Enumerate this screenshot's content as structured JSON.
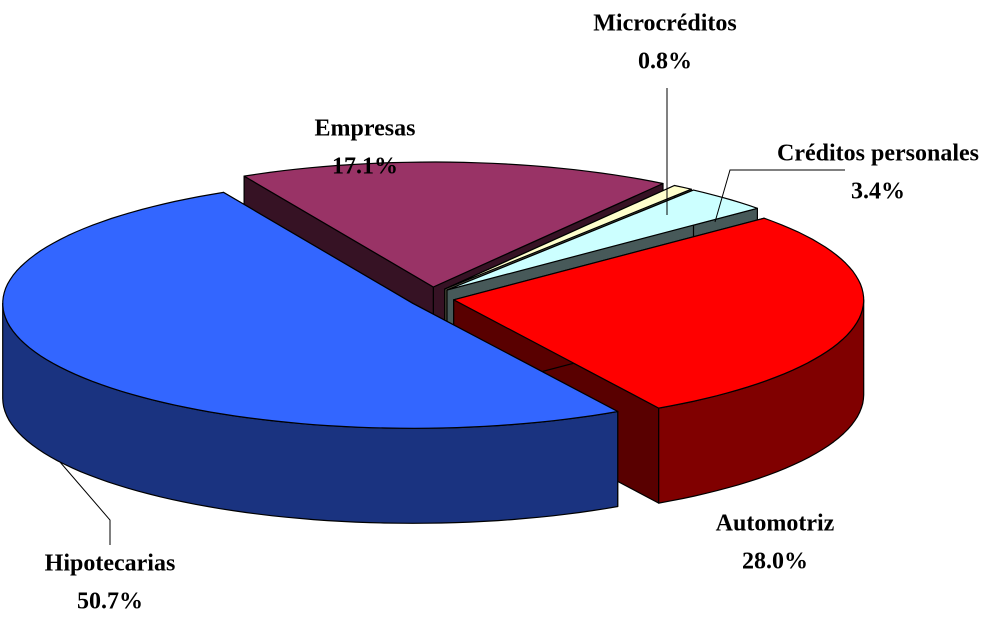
{
  "chart_data": {
    "type": "pie",
    "categories": [
      "Automotriz",
      "Créditos personales",
      "Microcréditos",
      "Empresas",
      "Hipotecarias"
    ],
    "values": [
      28.0,
      3.4,
      0.8,
      17.1,
      50.7
    ],
    "value_labels": [
      "28.0%",
      "3.4%",
      "0.8%",
      "17.1%",
      "50.7%"
    ],
    "colors": [
      "#ff0000",
      "#ccffff",
      "#ffffcc",
      "#993366",
      "#3366ff"
    ]
  }
}
